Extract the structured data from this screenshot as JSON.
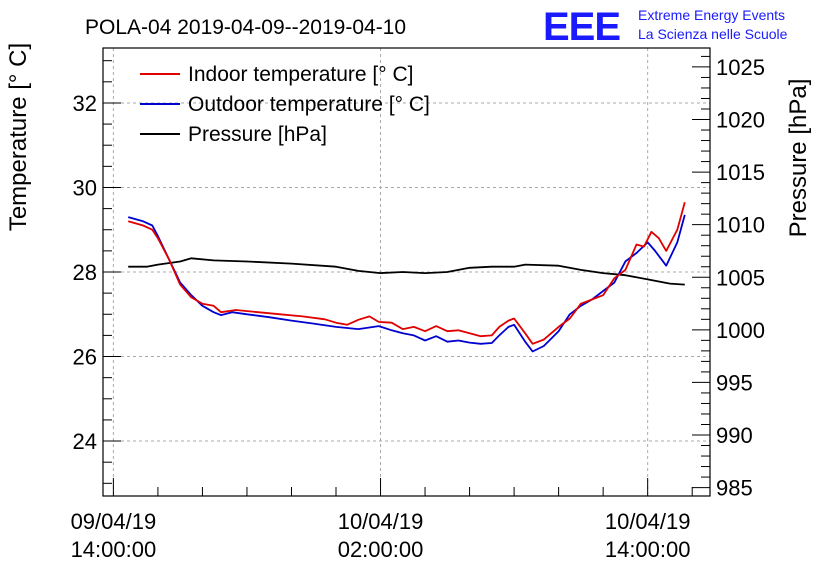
{
  "header": {
    "title": "POLA-04 2019-04-09--2019-04-10",
    "logo_text": "EEE",
    "org_line1": "Extreme Energy Events",
    "org_line2": "La Scienza nelle Scuole"
  },
  "colors": {
    "indoor": "#e00000",
    "outdoor": "#0000d0",
    "pressure": "#000000",
    "logo": "#1a1aff"
  },
  "chart_data": {
    "type": "line",
    "title": "POLA-04 2019-04-09--2019-04-10",
    "ylabel": "Temperature [° C]",
    "y2label": "Pressure [hPa]",
    "ylim": [
      22.7,
      33.3
    ],
    "y2lim": [
      984.2,
      1026.8
    ],
    "xlim": [
      "2019-04-09 13:32",
      "2019-04-10 16:48"
    ],
    "grid": true,
    "legend_position": "top-left",
    "yticks": [
      "24",
      "26",
      "28",
      "30",
      "32"
    ],
    "y2ticks": [
      "985",
      "990",
      "995",
      "1000",
      "1005",
      "1010",
      "1015",
      "1020",
      "1025"
    ],
    "xticks": [
      {
        "time": "2019-04-09 14:00",
        "line1": "09/04/19",
        "line2": "14:00:00"
      },
      {
        "time": "2019-04-10 02:00",
        "line1": "10/04/19",
        "line2": "02:00:00"
      },
      {
        "time": "2019-04-10 14:00",
        "line1": "10/04/19",
        "line2": "14:00:00"
      }
    ],
    "series": [
      {
        "name": "Indoor temperature [° C]",
        "axis": "left",
        "color": "#e00000",
        "points": [
          [
            "2019-04-09 14:40",
            29.2
          ],
          [
            "2019-04-09 15:20",
            29.1
          ],
          [
            "2019-04-09 15:45",
            29.0
          ],
          [
            "2019-04-09 16:00",
            28.8
          ],
          [
            "2019-04-09 16:30",
            28.3
          ],
          [
            "2019-04-09 17:00",
            27.7
          ],
          [
            "2019-04-09 17:30",
            27.4
          ],
          [
            "2019-04-09 18:00",
            27.25
          ],
          [
            "2019-04-09 18:30",
            27.2
          ],
          [
            "2019-04-09 18:50",
            27.05
          ],
          [
            "2019-04-09 19:30",
            27.1
          ],
          [
            "2019-04-09 20:30",
            27.05
          ],
          [
            "2019-04-09 21:30",
            27.0
          ],
          [
            "2019-04-09 22:30",
            26.95
          ],
          [
            "2019-04-09 23:30",
            26.88
          ],
          [
            "2019-04-10 00:00",
            26.8
          ],
          [
            "2019-04-10 00:30",
            26.75
          ],
          [
            "2019-04-10 01:00",
            26.87
          ],
          [
            "2019-04-10 01:30",
            26.95
          ],
          [
            "2019-04-10 01:55",
            26.82
          ],
          [
            "2019-04-10 02:30",
            26.8
          ],
          [
            "2019-04-10 03:00",
            26.65
          ],
          [
            "2019-04-10 03:30",
            26.7
          ],
          [
            "2019-04-10 04:00",
            26.6
          ],
          [
            "2019-04-10 04:30",
            26.72
          ],
          [
            "2019-04-10 05:00",
            26.6
          ],
          [
            "2019-04-10 05:30",
            26.62
          ],
          [
            "2019-04-10 06:00",
            26.55
          ],
          [
            "2019-04-10 06:30",
            26.48
          ],
          [
            "2019-04-10 07:00",
            26.5
          ],
          [
            "2019-04-10 07:20",
            26.7
          ],
          [
            "2019-04-10 07:45",
            26.85
          ],
          [
            "2019-04-10 08:00",
            26.9
          ],
          [
            "2019-04-10 08:30",
            26.55
          ],
          [
            "2019-04-10 08:50",
            26.3
          ],
          [
            "2019-04-10 09:20",
            26.4
          ],
          [
            "2019-04-10 10:00",
            26.7
          ],
          [
            "2019-04-10 10:30",
            26.9
          ],
          [
            "2019-04-10 11:00",
            27.25
          ],
          [
            "2019-04-10 11:30",
            27.35
          ],
          [
            "2019-04-10 12:00",
            27.45
          ],
          [
            "2019-04-10 12:30",
            27.85
          ],
          [
            "2019-04-10 13:00",
            28.05
          ],
          [
            "2019-04-10 13:30",
            28.65
          ],
          [
            "2019-04-10 13:50",
            28.6
          ],
          [
            "2019-04-10 14:10",
            28.95
          ],
          [
            "2019-04-10 14:30",
            28.8
          ],
          [
            "2019-04-10 14:50",
            28.5
          ],
          [
            "2019-04-10 15:20",
            29.0
          ],
          [
            "2019-04-10 15:40",
            29.65
          ]
        ]
      },
      {
        "name": "Outdoor temperature [° C]",
        "axis": "left",
        "color": "#0000d0",
        "points": [
          [
            "2019-04-09 14:40",
            29.3
          ],
          [
            "2019-04-09 15:20",
            29.2
          ],
          [
            "2019-04-09 15:45",
            29.1
          ],
          [
            "2019-04-09 16:00",
            28.85
          ],
          [
            "2019-04-09 16:30",
            28.3
          ],
          [
            "2019-04-09 17:00",
            27.75
          ],
          [
            "2019-04-09 17:30",
            27.45
          ],
          [
            "2019-04-09 18:00",
            27.2
          ],
          [
            "2019-04-09 18:30",
            27.05
          ],
          [
            "2019-04-09 18:50",
            26.98
          ],
          [
            "2019-04-09 19:20",
            27.05
          ],
          [
            "2019-04-09 20:00",
            27.0
          ],
          [
            "2019-04-09 21:00",
            26.93
          ],
          [
            "2019-04-09 22:00",
            26.85
          ],
          [
            "2019-04-09 23:00",
            26.78
          ],
          [
            "2019-04-10 00:00",
            26.7
          ],
          [
            "2019-04-10 01:00",
            26.65
          ],
          [
            "2019-04-10 01:55",
            26.72
          ],
          [
            "2019-04-10 02:30",
            26.62
          ],
          [
            "2019-04-10 03:00",
            26.55
          ],
          [
            "2019-04-10 03:30",
            26.5
          ],
          [
            "2019-04-10 04:00",
            26.38
          ],
          [
            "2019-04-10 04:30",
            26.48
          ],
          [
            "2019-04-10 05:00",
            26.35
          ],
          [
            "2019-04-10 05:30",
            26.38
          ],
          [
            "2019-04-10 06:00",
            26.33
          ],
          [
            "2019-04-10 06:30",
            26.3
          ],
          [
            "2019-04-10 07:00",
            26.32
          ],
          [
            "2019-04-10 07:20",
            26.5
          ],
          [
            "2019-04-10 07:45",
            26.7
          ],
          [
            "2019-04-10 08:00",
            26.75
          ],
          [
            "2019-04-10 08:30",
            26.35
          ],
          [
            "2019-04-10 08:50",
            26.12
          ],
          [
            "2019-04-10 09:20",
            26.25
          ],
          [
            "2019-04-10 10:00",
            26.6
          ],
          [
            "2019-04-10 10:30",
            27.0
          ],
          [
            "2019-04-10 11:00",
            27.2
          ],
          [
            "2019-04-10 11:30",
            27.35
          ],
          [
            "2019-04-10 12:00",
            27.55
          ],
          [
            "2019-04-10 12:30",
            27.75
          ],
          [
            "2019-04-10 13:00",
            28.25
          ],
          [
            "2019-04-10 13:30",
            28.45
          ],
          [
            "2019-04-10 14:00",
            28.7
          ],
          [
            "2019-04-10 14:20",
            28.5
          ],
          [
            "2019-04-10 14:50",
            28.15
          ],
          [
            "2019-04-10 15:20",
            28.7
          ],
          [
            "2019-04-10 15:40",
            29.35
          ]
        ]
      },
      {
        "name": "Pressure [hPa]",
        "axis": "right",
        "color": "#000000",
        "points": [
          [
            "2019-04-09 14:40",
            1006.0
          ],
          [
            "2019-04-09 15:30",
            1006.0
          ],
          [
            "2019-04-09 16:00",
            1006.2
          ],
          [
            "2019-04-09 17:00",
            1006.5
          ],
          [
            "2019-04-09 17:30",
            1006.8
          ],
          [
            "2019-04-09 18:30",
            1006.6
          ],
          [
            "2019-04-09 20:00",
            1006.5
          ],
          [
            "2019-04-09 22:00",
            1006.3
          ],
          [
            "2019-04-10 00:00",
            1006.0
          ],
          [
            "2019-04-10 01:00",
            1005.6
          ],
          [
            "2019-04-10 02:00",
            1005.4
          ],
          [
            "2019-04-10 03:00",
            1005.5
          ],
          [
            "2019-04-10 04:00",
            1005.4
          ],
          [
            "2019-04-10 05:00",
            1005.5
          ],
          [
            "2019-04-10 06:00",
            1005.9
          ],
          [
            "2019-04-10 07:00",
            1006.0
          ],
          [
            "2019-04-10 08:00",
            1006.0
          ],
          [
            "2019-04-10 08:30",
            1006.2
          ],
          [
            "2019-04-10 10:00",
            1006.1
          ],
          [
            "2019-04-10 11:00",
            1005.7
          ],
          [
            "2019-04-10 12:00",
            1005.4
          ],
          [
            "2019-04-10 13:00",
            1005.2
          ],
          [
            "2019-04-10 14:00",
            1004.8
          ],
          [
            "2019-04-10 15:00",
            1004.4
          ],
          [
            "2019-04-10 15:40",
            1004.3
          ]
        ]
      }
    ]
  }
}
